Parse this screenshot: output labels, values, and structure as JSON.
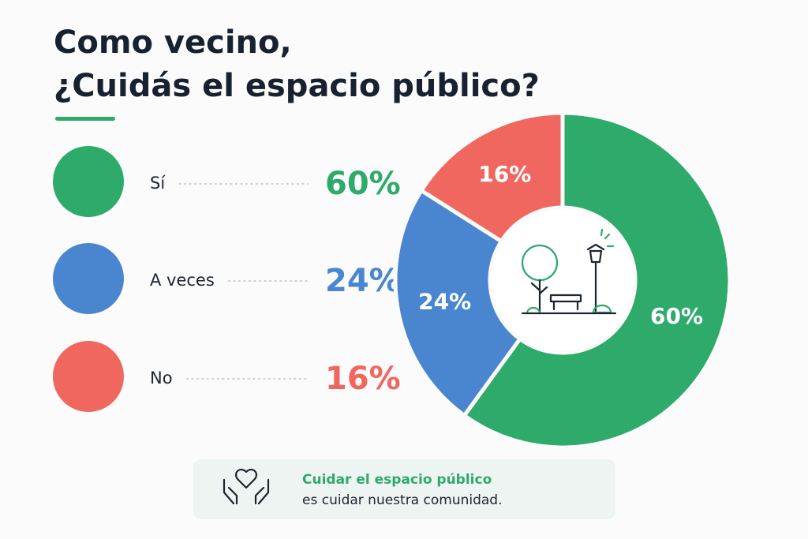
{
  "chart_data": {
    "type": "donut",
    "title": [
      "Como vecino,",
      "¿Cuidás el espacio público?"
    ],
    "categories": [
      "Sí",
      "A veces",
      "No"
    ],
    "values": [
      60,
      24,
      16
    ],
    "value_labels": [
      "60%",
      "24%",
      "16%"
    ],
    "colors": [
      "#2eaa6b",
      "#4a86d0",
      "#f0675f"
    ],
    "annotations": [
      "Cuidar el espacio público",
      "es cuidar nuestra comunidad."
    ]
  }
}
